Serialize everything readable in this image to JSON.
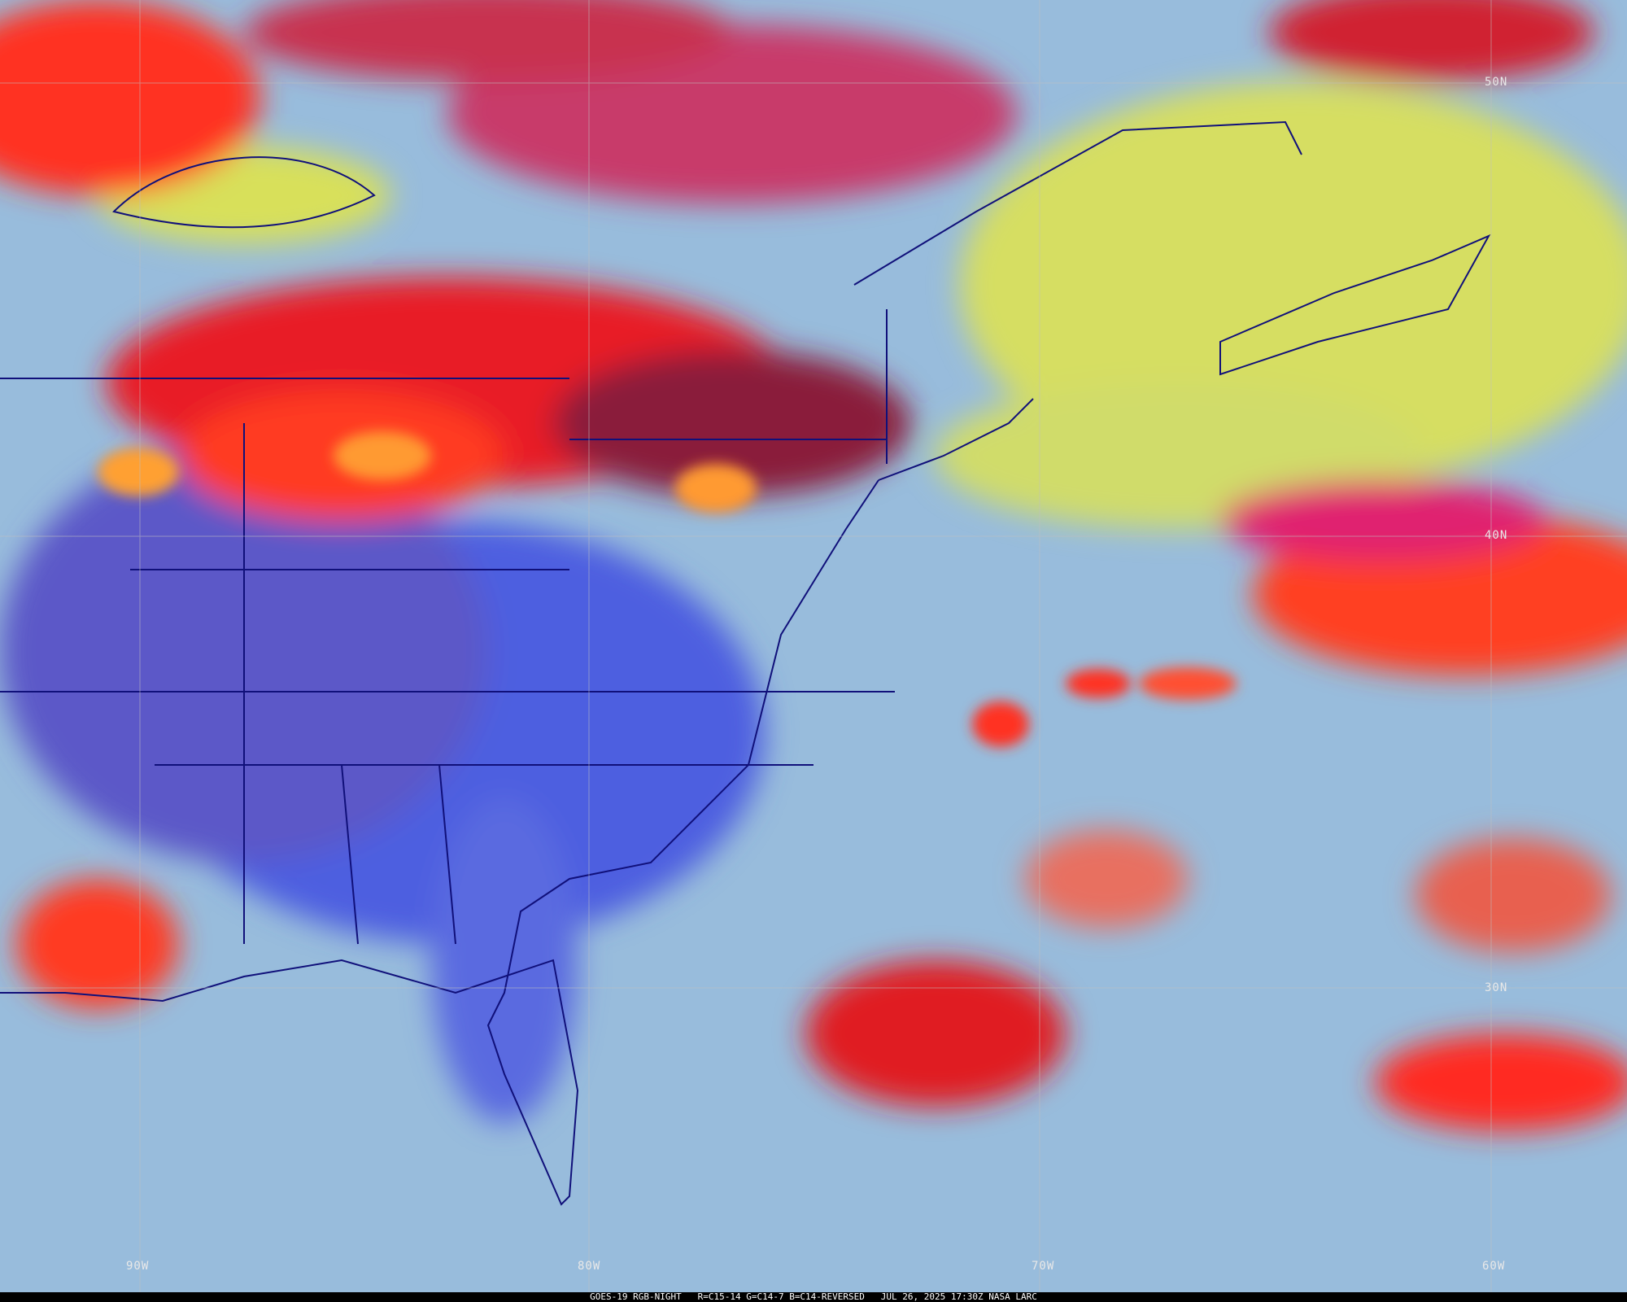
{
  "caption": "GOES-19 RGB-NIGHT   R=C15-14 G=C14-7 B=C14-REVERSED   JUL 26, 2025 17:30Z NASA LARC",
  "latitude_labels": [
    "50N",
    "40N",
    "30N"
  ],
  "longitude_labels": [
    "90W",
    "80W",
    "70W",
    "60W"
  ],
  "colors": {
    "high_cloud": "#ff2020",
    "deep_convection": "#ff8a20",
    "low_cloud_fog": "#d8e060",
    "land_clear": "#4a5ee0",
    "ocean_clear": "#9cc0e0",
    "borders": "#10107a",
    "gridlines": "#c0c0c0"
  }
}
